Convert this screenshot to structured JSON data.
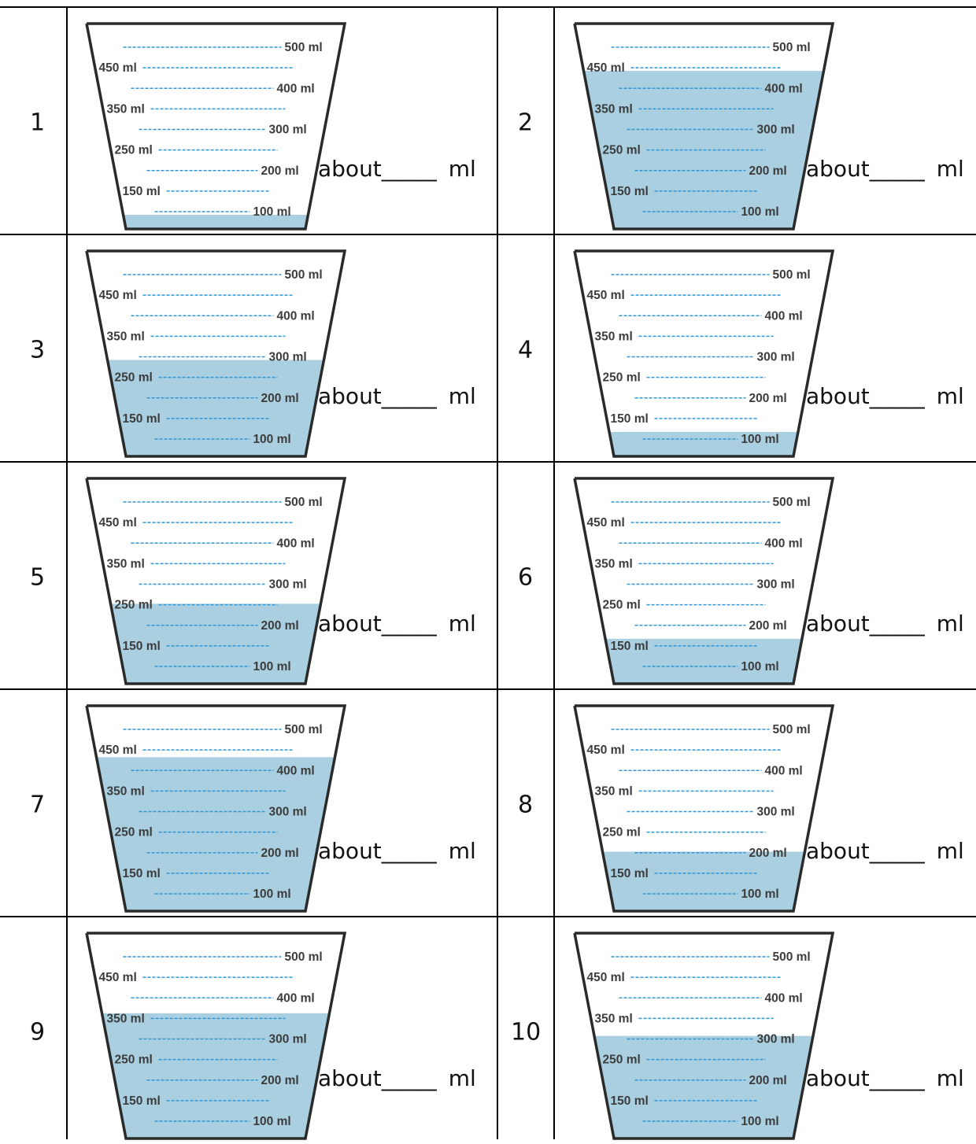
{
  "about_label": "about",
  "blank": "_____",
  "unit": "ml",
  "graduation_labels": [
    "500 ml",
    "450 ml",
    "400 ml",
    "350 ml",
    "300 ml",
    "250 ml",
    "200 ml",
    "150 ml",
    "100 ml"
  ],
  "colors": {
    "water": "#a9cfe0",
    "dash": "#2f96d6",
    "outline": "#2a2a2a",
    "label": "#3c3c3c"
  },
  "questions": [
    {
      "number": "1",
      "fill_ml": 100
    },
    {
      "number": "2",
      "fill_ml": 450
    },
    {
      "number": "3",
      "fill_ml": 300
    },
    {
      "number": "4",
      "fill_ml": 125
    },
    {
      "number": "5",
      "fill_ml": 260
    },
    {
      "number": "6",
      "fill_ml": 175
    },
    {
      "number": "7",
      "fill_ml": 440
    },
    {
      "number": "8",
      "fill_ml": 210
    },
    {
      "number": "9",
      "fill_ml": 370
    },
    {
      "number": "10",
      "fill_ml": 315
    }
  ]
}
